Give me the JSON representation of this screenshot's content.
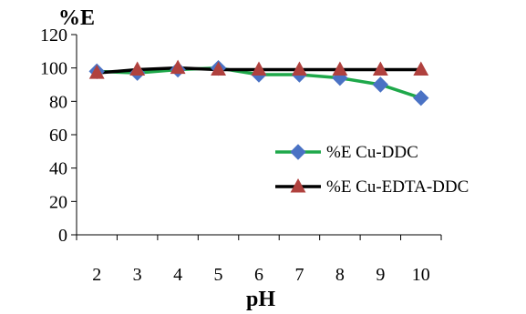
{
  "chart_data": {
    "type": "line",
    "ylabel": "%E",
    "xlabel": "pH",
    "x": [
      2,
      3,
      4,
      5,
      6,
      7,
      8,
      9,
      10
    ],
    "ylim": [
      0,
      120
    ],
    "yticks": [
      0,
      20,
      40,
      60,
      80,
      100,
      120
    ],
    "grid": false,
    "legend_position": "right",
    "series": [
      {
        "name": "%E Cu-DDC",
        "color": "#1ea84a",
        "marker_color": "#4a72c4",
        "marker": "diamond",
        "values": [
          98,
          97,
          99,
          100,
          96,
          96,
          94,
          90,
          82
        ]
      },
      {
        "name": "%E Cu-EDTA-DDC",
        "color": "#000000",
        "marker_color": "#b0413e",
        "marker": "triangle",
        "values": [
          97,
          99,
          100,
          99,
          99,
          99,
          99,
          99,
          99
        ]
      }
    ]
  }
}
